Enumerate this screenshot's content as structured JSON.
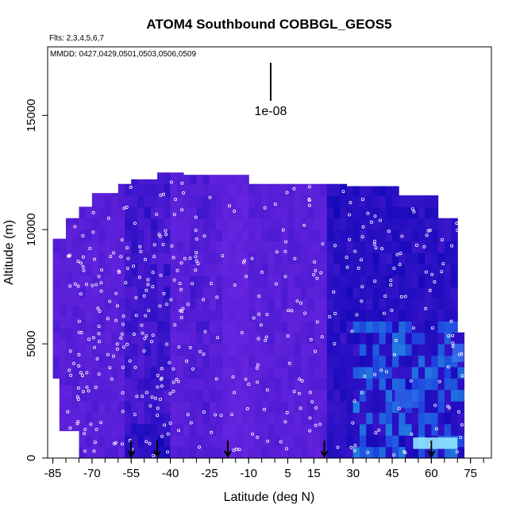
{
  "chart_data": {
    "type": "heatmap",
    "title": "ATOM4 Southbound COBBGL_GEOS5",
    "flights_note": "Flts: 2,3,4,5,6,7",
    "dates_note": "MMDD: 0427,0429,0501,0503,0506,0509",
    "xlabel": "Latitude (deg N)",
    "ylabel": "Altitude (m)",
    "xlim": [
      -87,
      83
    ],
    "ylim": [
      0,
      18000
    ],
    "x_ticks": [
      -85,
      -70,
      -55,
      -40,
      -25,
      -10,
      5,
      15,
      30,
      45,
      60,
      75
    ],
    "y_ticks": [
      0,
      5000,
      10000,
      15000
    ],
    "scale_label": "1e-08",
    "arrow_latitudes": [
      -55,
      -45,
      -18,
      19,
      60
    ],
    "colors": {
      "low": "#1500a0",
      "mid": "#5a1fd8",
      "high": "#7a2ae8",
      "bright": "#8fe6ff",
      "points": "#ffffff"
    }
  }
}
